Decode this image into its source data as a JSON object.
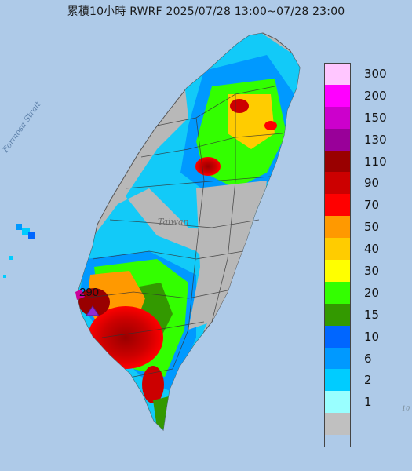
{
  "title": "累積10小時 RWRF 2025/07/28 13:00~07/28 23:00",
  "sea_label": "Formosa Strait",
  "island_label": "Taiwan",
  "marker": {
    "label": "290",
    "icon": "triangle-marker-icon"
  },
  "edge_label": "10",
  "colors": {
    "sea": "#a9c6e6",
    "land": "#b8b8b8",
    "marker": "#8e2bd6"
  },
  "legend": [
    {
      "label": "300",
      "color": "#ffc6ff"
    },
    {
      "label": "200",
      "color": "#ff00ff"
    },
    {
      "label": "150",
      "color": "#cc00cc"
    },
    {
      "label": "130",
      "color": "#990099"
    },
    {
      "label": "110",
      "color": "#990000"
    },
    {
      "label": "90",
      "color": "#cc0000"
    },
    {
      "label": "70",
      "color": "#ff0000"
    },
    {
      "label": "50",
      "color": "#ff9900"
    },
    {
      "label": "40",
      "color": "#ffcc00"
    },
    {
      "label": "30",
      "color": "#ffff00"
    },
    {
      "label": "20",
      "color": "#33ff00"
    },
    {
      "label": "15",
      "color": "#339900"
    },
    {
      "label": "10",
      "color": "#0066ff"
    },
    {
      "label": "6",
      "color": "#0099ff"
    },
    {
      "label": "2",
      "color": "#00ccff"
    },
    {
      "label": "1",
      "color": "#99ffff"
    },
    {
      "label": "",
      "color": "#c0c0c0"
    }
  ]
}
